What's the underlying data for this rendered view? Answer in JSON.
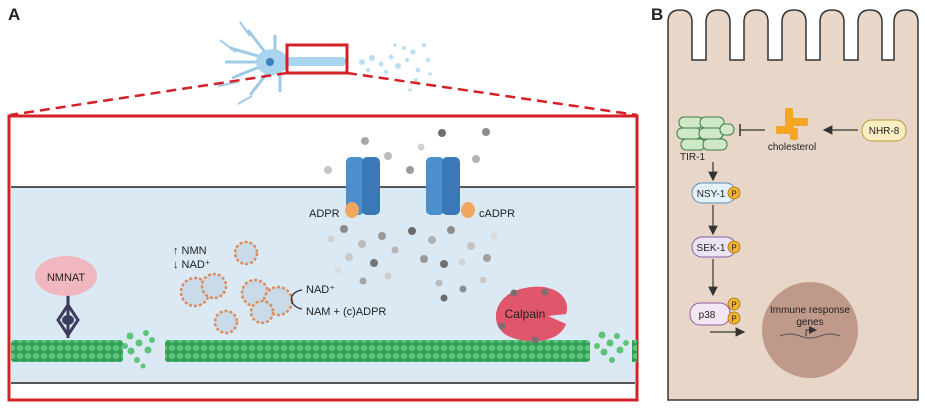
{
  "panel_a": {
    "letter": "A",
    "labels": {
      "nmnat": "NMNAT",
      "nmn_line": "↑ NMN",
      "nad_line": "↓ NAD⁺",
      "adpr": "ADPR",
      "cadpr": "cADPR",
      "nad_reaction_top": "NAD⁺",
      "nad_reaction_bottom": "NAM + (c)ADPR",
      "calpain": "Calpain"
    },
    "colors": {
      "frame": "#d42026",
      "axoplasm": "#dbe9f4",
      "microtubule": "#2f9e57",
      "channel": "#4c8fd0",
      "calpain": "#e0566b",
      "nmnat": "#f1b7c0"
    }
  },
  "panel_b": {
    "letter": "B",
    "labels": {
      "tir1": "TIR-1",
      "cholesterol": "cholesterol",
      "nhr8": "NHR-8",
      "nsy1": "NSY-1",
      "sek1": "SEK-1",
      "p38": "p38",
      "phospho": "P",
      "immune_line1": "Immune response",
      "immune_line2": "genes"
    },
    "colors": {
      "cell": "#e8d7c8",
      "nucleus": "#bf9a8a",
      "tir1": "#cfe8c8",
      "nsy1": "#e3f1fb",
      "sek1": "#ece3f5",
      "p38": "#f3e6f3",
      "phospho": "#f0b431",
      "nhr8": "#fbeec2",
      "cholesterol": "#f5a623"
    }
  }
}
